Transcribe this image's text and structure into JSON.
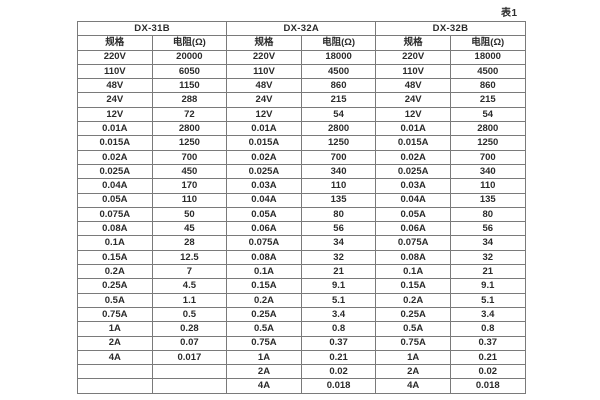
{
  "page": {
    "caption": "表1"
  },
  "table": {
    "groups": [
      {
        "label": "DX-31B",
        "col_headers": [
          "规格",
          "电阻(Ω)"
        ],
        "rows": [
          [
            "220V",
            "20000"
          ],
          [
            "110V",
            "6050"
          ],
          [
            "48V",
            "1150"
          ],
          [
            "24V",
            "288"
          ],
          [
            "12V",
            "72"
          ],
          [
            "0.01A",
            "2800"
          ],
          [
            "0.015A",
            "1250"
          ],
          [
            "0.02A",
            "700"
          ],
          [
            "0.025A",
            "450"
          ],
          [
            "0.04A",
            "170"
          ],
          [
            "0.05A",
            "110"
          ],
          [
            "0.075A",
            "50"
          ],
          [
            "0.08A",
            "45"
          ],
          [
            "0.1A",
            "28"
          ],
          [
            "0.15A",
            "12.5"
          ],
          [
            "0.2A",
            "7"
          ],
          [
            "0.25A",
            "4.5"
          ],
          [
            "0.5A",
            "1.1"
          ],
          [
            "0.75A",
            "0.5"
          ],
          [
            "1A",
            "0.28"
          ],
          [
            "2A",
            "0.07"
          ],
          [
            "4A",
            "0.017"
          ],
          [
            "",
            ""
          ],
          [
            "",
            ""
          ]
        ]
      },
      {
        "label": "DX-32A",
        "col_headers": [
          "规格",
          "电阻(Ω)"
        ],
        "rows": [
          [
            "220V",
            "18000"
          ],
          [
            "110V",
            "4500"
          ],
          [
            "48V",
            "860"
          ],
          [
            "24V",
            "215"
          ],
          [
            "12V",
            "54"
          ],
          [
            "0.01A",
            "2800"
          ],
          [
            "0.015A",
            "1250"
          ],
          [
            "0.02A",
            "700"
          ],
          [
            "0.025A",
            "340"
          ],
          [
            "0.03A",
            "110"
          ],
          [
            "0.04A",
            "135"
          ],
          [
            "0.05A",
            "80"
          ],
          [
            "0.06A",
            "56"
          ],
          [
            "0.075A",
            "34"
          ],
          [
            "0.08A",
            "32"
          ],
          [
            "0.1A",
            "21"
          ],
          [
            "0.15A",
            "9.1"
          ],
          [
            "0.2A",
            "5.1"
          ],
          [
            "0.25A",
            "3.4"
          ],
          [
            "0.5A",
            "0.8"
          ],
          [
            "0.75A",
            "0.37"
          ],
          [
            "1A",
            "0.21"
          ],
          [
            "2A",
            "0.02"
          ],
          [
            "4A",
            "0.018"
          ]
        ]
      },
      {
        "label": "DX-32B",
        "col_headers": [
          "规格",
          "电阻(Ω)"
        ],
        "rows": [
          [
            "220V",
            "18000"
          ],
          [
            "110V",
            "4500"
          ],
          [
            "48V",
            "860"
          ],
          [
            "24V",
            "215"
          ],
          [
            "12V",
            "54"
          ],
          [
            "0.01A",
            "2800"
          ],
          [
            "0.015A",
            "1250"
          ],
          [
            "0.02A",
            "700"
          ],
          [
            "0.025A",
            "340"
          ],
          [
            "0.03A",
            "110"
          ],
          [
            "0.04A",
            "135"
          ],
          [
            "0.05A",
            "80"
          ],
          [
            "0.06A",
            "56"
          ],
          [
            "0.075A",
            "34"
          ],
          [
            "0.08A",
            "32"
          ],
          [
            "0.1A",
            "21"
          ],
          [
            "0.15A",
            "9.1"
          ],
          [
            "0.2A",
            "5.1"
          ],
          [
            "0.25A",
            "3.4"
          ],
          [
            "0.5A",
            "0.8"
          ],
          [
            "0.75A",
            "0.37"
          ],
          [
            "1A",
            "0.21"
          ],
          [
            "2A",
            "0.02"
          ],
          [
            "4A",
            "0.018"
          ]
        ]
      }
    ]
  }
}
